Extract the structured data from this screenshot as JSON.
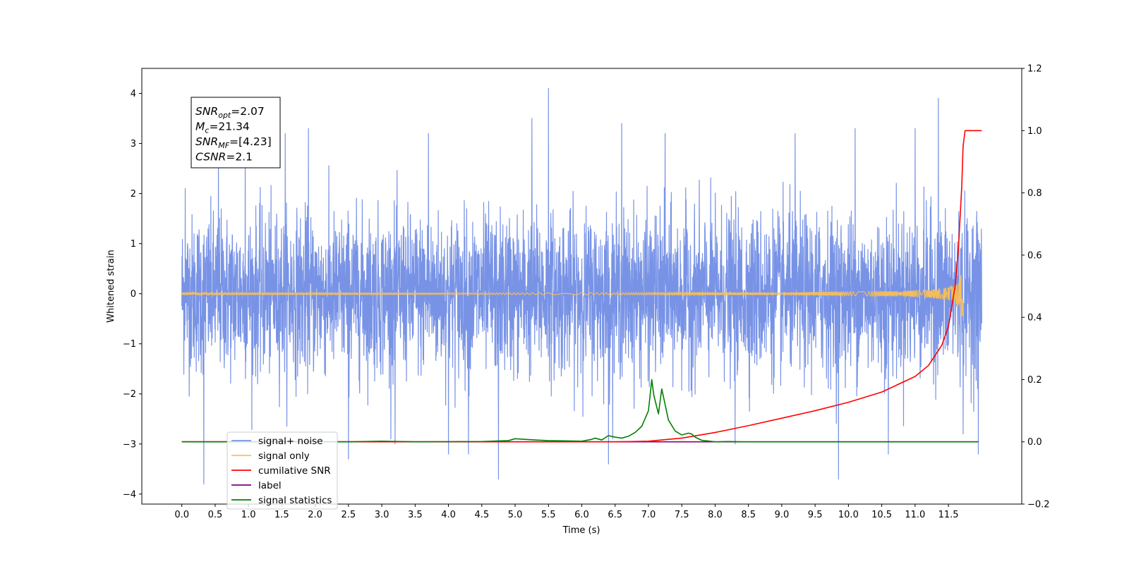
{
  "chart_data": {
    "type": "line",
    "xlabel": "Time (s)",
    "ylabel": "Whitened strain",
    "xlim": [
      -0.6,
      12.6
    ],
    "ylim": [
      -4.2,
      4.5
    ],
    "y2lim": [
      -0.2,
      1.2
    ],
    "x_ticks": [
      "0.0",
      "0.5",
      "1.0",
      "1.5",
      "2.0",
      "2.5",
      "3.0",
      "3.5",
      "4.0",
      "4.5",
      "5.0",
      "5.5",
      "6.0",
      "6.5",
      "7.0",
      "7.5",
      "8.0",
      "8.5",
      "9.0",
      "9.5",
      "10.0",
      "10.5",
      "11.0",
      "11.5"
    ],
    "y_ticks": [
      "4",
      "3",
      "2",
      "1",
      "0",
      "−1",
      "−2",
      "−3",
      "−4"
    ],
    "y2_ticks": [
      "1.2",
      "1.0",
      "0.8",
      "0.6",
      "0.4",
      "0.2",
      "0.0",
      "−0.2"
    ],
    "grid": false,
    "legend_position": "lower-left",
    "info_box": {
      "lines": [
        {
          "main": "SNR",
          "sub": "opt",
          "value": "=2.07"
        },
        {
          "main": "M",
          "sub": "c",
          "value": "=21.34"
        },
        {
          "main": "SNR",
          "sub": "MF",
          "value": "=[4.23]"
        },
        {
          "main": "CSNR",
          "sub": "",
          "value": "=2.1"
        }
      ]
    },
    "series": [
      {
        "name": "signal+ noise",
        "axis": "left",
        "color": "#7893e6",
        "kind": "gaussian-noise",
        "sigma": 0.78,
        "x_start": 0.0,
        "x_end": 12.0,
        "spikes": [
          [
            0.05,
            2.1
          ],
          [
            0.33,
            -3.8
          ],
          [
            0.55,
            3.0
          ],
          [
            0.95,
            3.2
          ],
          [
            1.55,
            3.2
          ],
          [
            1.9,
            3.3
          ],
          [
            2.5,
            -3.3
          ],
          [
            3.2,
            -3.0
          ],
          [
            3.7,
            3.2
          ],
          [
            4.0,
            -3.2
          ],
          [
            4.3,
            -3.2
          ],
          [
            4.75,
            -3.7
          ],
          [
            5.25,
            3.5
          ],
          [
            5.5,
            4.1
          ],
          [
            6.4,
            -3.4
          ],
          [
            6.6,
            3.4
          ],
          [
            7.25,
            3.2
          ],
          [
            8.3,
            -3.0
          ],
          [
            9.2,
            3.2
          ],
          [
            9.85,
            -3.7
          ],
          [
            10.1,
            3.3
          ],
          [
            10.6,
            -3.2
          ],
          [
            11.0,
            3.3
          ],
          [
            11.35,
            3.9
          ],
          [
            11.72,
            -2.8
          ],
          [
            11.95,
            -3.2
          ]
        ]
      },
      {
        "name": "signal only",
        "axis": "left",
        "color": "#ffc14d",
        "kind": "chirp",
        "x_start": 0.0,
        "x_end": 11.72,
        "peak_amplitude": 0.45
      },
      {
        "name": "cumilative SNR",
        "axis": "right",
        "color": "#ff0000",
        "x": [
          0.0,
          6.0,
          6.5,
          7.0,
          7.5,
          8.0,
          8.5,
          9.0,
          9.5,
          10.0,
          10.5,
          11.0,
          11.2,
          11.4,
          11.5,
          11.6,
          11.65,
          11.7,
          11.72,
          11.75,
          12.0
        ],
        "values": [
          0.0,
          0.0,
          0.0,
          0.002,
          0.012,
          0.03,
          0.052,
          0.076,
          0.1,
          0.127,
          0.16,
          0.21,
          0.245,
          0.31,
          0.37,
          0.5,
          0.62,
          0.82,
          0.95,
          1.0,
          1.0
        ]
      },
      {
        "name": "label",
        "axis": "right",
        "color": "#800080",
        "x": [
          0.0,
          11.95
        ],
        "values": [
          0.0,
          0.0
        ]
      },
      {
        "name": "signal statistics",
        "axis": "right",
        "color": "#008000",
        "x": [
          0.0,
          2.5,
          3.0,
          3.5,
          4.5,
          4.9,
          5.0,
          5.3,
          5.5,
          6.0,
          6.15,
          6.2,
          6.3,
          6.4,
          6.5,
          6.6,
          6.7,
          6.8,
          6.9,
          7.0,
          7.05,
          7.08,
          7.15,
          7.2,
          7.25,
          7.3,
          7.4,
          7.5,
          7.6,
          7.65,
          7.7,
          7.8,
          8.0,
          8.2,
          8.4,
          11.95
        ],
        "values": [
          0.0,
          0.0,
          0.002,
          0.0,
          0.001,
          0.004,
          0.01,
          0.006,
          0.004,
          0.002,
          0.008,
          0.012,
          0.006,
          0.02,
          0.015,
          0.012,
          0.018,
          0.03,
          0.05,
          0.1,
          0.2,
          0.15,
          0.09,
          0.17,
          0.12,
          0.07,
          0.035,
          0.022,
          0.028,
          0.025,
          0.015,
          0.005,
          0.0,
          0.001,
          0.0,
          0.0
        ]
      }
    ]
  }
}
